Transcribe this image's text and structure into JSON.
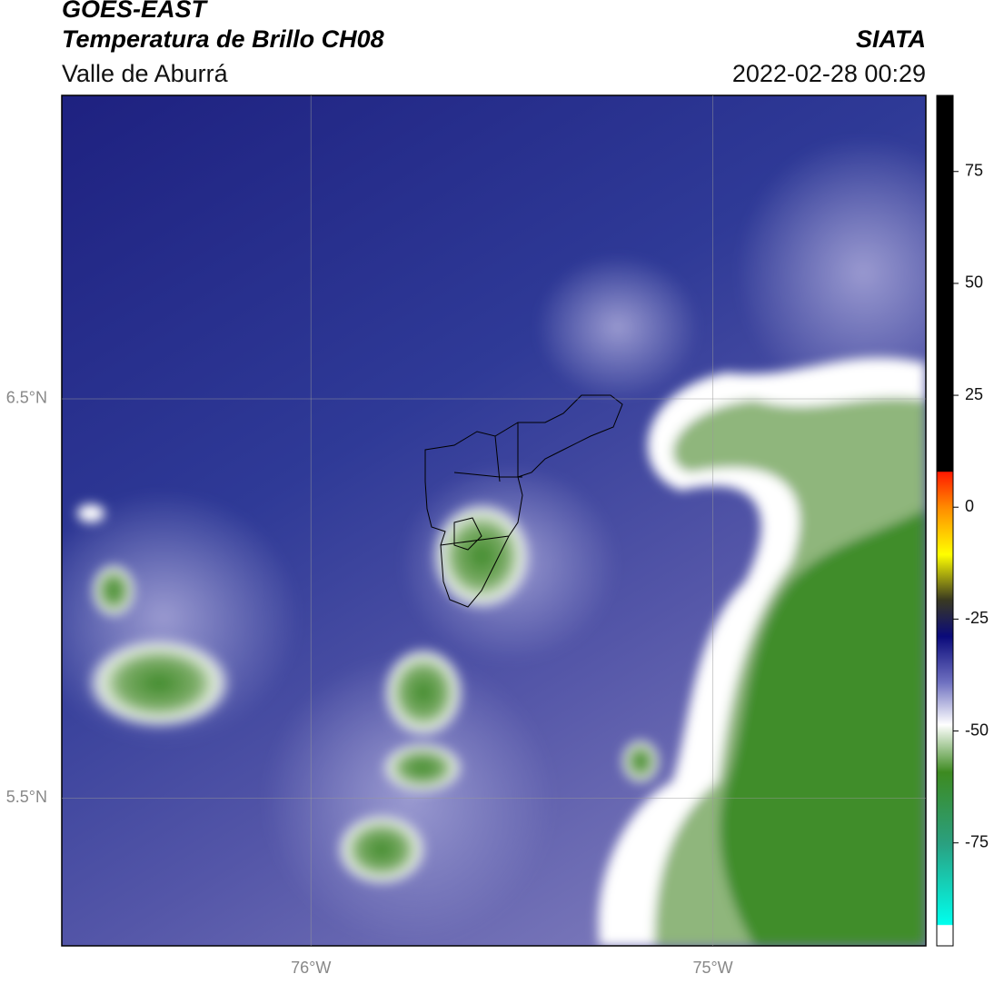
{
  "header": {
    "title": "GOES-EAST",
    "subtitle": "Temperatura de Brillo CH08",
    "region": "Valle de Aburrá",
    "source": "SIATA",
    "datetime": "2022-02-28 00:29"
  },
  "map": {
    "xlim": [
      -76.62,
      -74.47
    ],
    "ylim": [
      5.13,
      7.26
    ],
    "xticks": [
      {
        "value": -76,
        "label": "76°W"
      },
      {
        "value": -75,
        "label": "75°W"
      }
    ],
    "yticks": [
      {
        "value": 6.5,
        "label": "6.5°N"
      },
      {
        "value": 5.5,
        "label": "5.5°N"
      }
    ],
    "grid": true
  },
  "colorbar": {
    "lim": [
      -98,
      92
    ],
    "ticks": [
      75,
      50,
      25,
      0,
      -25,
      -50,
      -75
    ]
  }
}
